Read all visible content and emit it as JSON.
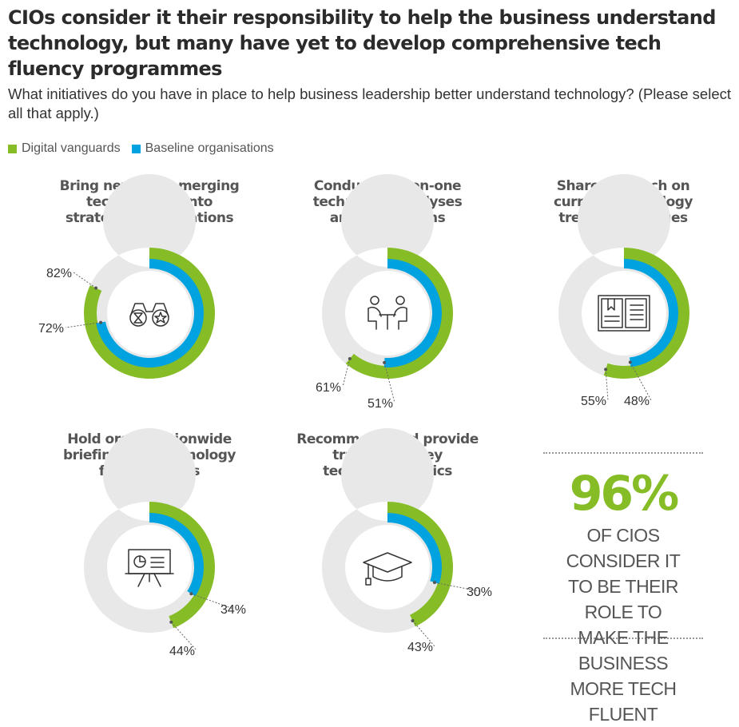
{
  "title": "CIOs consider it their responsibility to help the business understand technology, but many have yet to develop comprehensive tech fluency programmes",
  "subtitle": "What initiatives do you have in place to help business leadership better understand technology? (Please select all that apply.)",
  "colors": {
    "vanguard": "#86bc25",
    "baseline": "#00a3e0",
    "track": "#e8e8e8"
  },
  "legend": [
    {
      "label": "Digital vanguards",
      "color": "#86bc25"
    },
    {
      "label": "Baseline organisations",
      "color": "#00a3e0"
    }
  ],
  "chart_data": [
    {
      "type": "donut",
      "title": "Bring new and emerging\ntechnologies into\nstrategy conversations",
      "icon": "binoculars-icon",
      "series": [
        {
          "name": "Digital vanguards",
          "value": 82,
          "label": "82%"
        },
        {
          "name": "Baseline organisations",
          "value": 72,
          "label": "72%"
        }
      ]
    },
    {
      "type": "donut",
      "title": "Conduct one-on-one\ntechnology analyses\nand discussions",
      "icon": "meeting-icon",
      "series": [
        {
          "name": "Digital vanguards",
          "value": 61,
          "label": "61%"
        },
        {
          "name": "Baseline organisations",
          "value": 51,
          "label": "51%"
        }
      ]
    },
    {
      "type": "donut",
      "title": "Share research on\ncurrent technology\ntrends and issues",
      "icon": "open-book-icon",
      "series": [
        {
          "name": "Digital vanguards",
          "value": 55,
          "label": "55%"
        },
        {
          "name": "Baseline organisations",
          "value": 48,
          "label": "48%"
        }
      ]
    },
    {
      "type": "donut",
      "title": "Hold organisationwide\nbriefings on technology\nfundamentals",
      "icon": "presentation-board-icon",
      "series": [
        {
          "name": "Digital vanguards",
          "value": 44,
          "label": "44%"
        },
        {
          "name": "Baseline organisations",
          "value": 34,
          "label": "34%"
        }
      ]
    },
    {
      "type": "donut",
      "title": "Recommend and provide\ntraining on key\ntechnology topics",
      "icon": "graduation-cap-icon",
      "series": [
        {
          "name": "Digital vanguards",
          "value": 43,
          "label": "43%"
        },
        {
          "name": "Baseline organisations",
          "value": 30,
          "label": "30%"
        }
      ]
    }
  ],
  "callout": {
    "figure": "96%",
    "text": "OF CIOS CONSIDER IT\nTO BE THEIR ROLE TO\nMAKE THE BUSINESS\nMORE TECH FLUENT"
  }
}
